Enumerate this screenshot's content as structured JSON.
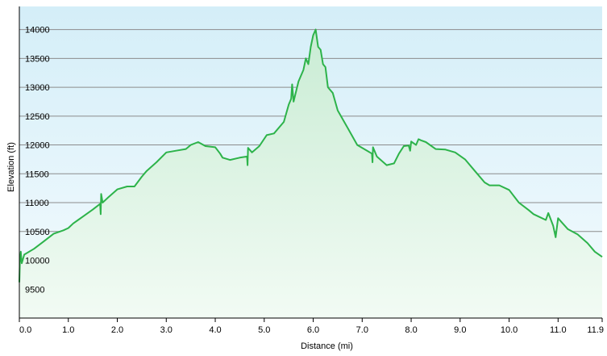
{
  "colors": {
    "line": "#2db34a",
    "fill_top": "#c9ecd4",
    "fill_bottom": "#f2fbf4",
    "bg_top": "#d4eef8",
    "bg_bottom": "#f4fbfe",
    "grid": "#8c8c8c",
    "axis": "#000000"
  },
  "chart_data": {
    "type": "area",
    "title": "",
    "xlabel": "Distance  (mi)",
    "ylabel": "Elevation (ft)",
    "xlim": [
      0,
      11.9
    ],
    "ylim": [
      9000,
      14400
    ],
    "grid": "horizontal",
    "x_ticks": [
      0,
      1,
      2,
      3,
      4,
      5,
      6,
      7,
      8,
      9,
      10,
      11,
      11.9
    ],
    "x_tick_labels": [
      "0.0",
      "1.0",
      "2.0",
      "3.0",
      "4.0",
      "5.0",
      "6.0",
      "7.0",
      "8.0",
      "9.0",
      "10.0",
      "11.0",
      "11.9"
    ],
    "y_ticks": [
      9500,
      10000,
      10500,
      11000,
      11500,
      12000,
      12500,
      13000,
      13500,
      14000
    ],
    "y_tick_labels": [
      "9500",
      "10000",
      "10500",
      "11000",
      "11500",
      "12000",
      "12500",
      "13000",
      "13500",
      "14000"
    ],
    "series": [
      {
        "x": [
          0.0,
          0.01,
          0.03,
          0.05,
          0.1,
          0.3,
          0.5,
          0.7,
          0.9,
          1.0,
          1.1,
          1.2,
          1.3,
          1.5,
          1.65,
          1.66,
          1.67,
          1.7,
          1.8,
          2.0,
          2.2,
          2.35,
          2.5,
          2.6,
          2.8,
          3.0,
          3.2,
          3.4,
          3.5,
          3.65,
          3.8,
          4.0,
          4.1,
          4.15,
          4.3,
          4.5,
          4.65,
          4.66,
          4.67,
          4.75,
          4.9,
          5.05,
          5.2,
          5.4,
          5.5,
          5.55,
          5.57,
          5.6,
          5.7,
          5.8,
          5.85,
          5.9,
          5.95,
          6.0,
          6.05,
          6.1,
          6.15,
          6.2,
          6.25,
          6.3,
          6.4,
          6.5,
          6.7,
          6.9,
          7.1,
          7.2,
          7.21,
          7.22,
          7.3,
          7.5,
          7.65,
          7.75,
          7.85,
          7.95,
          7.98,
          8.0,
          8.1,
          8.15,
          8.2,
          8.3,
          8.5,
          8.7,
          8.9,
          9.1,
          9.3,
          9.5,
          9.6,
          9.8,
          10.0,
          10.2,
          10.4,
          10.5,
          10.6,
          10.75,
          10.8,
          10.9,
          10.95,
          11.0,
          11.2,
          11.4,
          11.6,
          11.75,
          11.9
        ],
        "y": [
          9620,
          9950,
          10150,
          9950,
          10100,
          10200,
          10330,
          10460,
          10520,
          10560,
          10640,
          10700,
          10760,
          10880,
          10980,
          10800,
          11150,
          11000,
          11080,
          11230,
          11280,
          11280,
          11450,
          11550,
          11700,
          11870,
          11900,
          11930,
          12000,
          12050,
          11980,
          11960,
          11850,
          11780,
          11740,
          11780,
          11800,
          11650,
          11950,
          11870,
          11980,
          12170,
          12200,
          12400,
          12700,
          12800,
          13050,
          12750,
          13100,
          13300,
          13500,
          13400,
          13700,
          13900,
          14000,
          13700,
          13650,
          13400,
          13350,
          13000,
          12900,
          12600,
          12300,
          12000,
          11900,
          11850,
          11700,
          11960,
          11800,
          11650,
          11680,
          11850,
          11980,
          11990,
          11900,
          12060,
          12000,
          12100,
          12080,
          12050,
          11930,
          11920,
          11870,
          11750,
          11550,
          11350,
          11300,
          11300,
          11220,
          11000,
          10870,
          10800,
          10760,
          10700,
          10820,
          10600,
          10400,
          10730,
          10540,
          10450,
          10300,
          10150,
          10060
        ]
      }
    ]
  }
}
